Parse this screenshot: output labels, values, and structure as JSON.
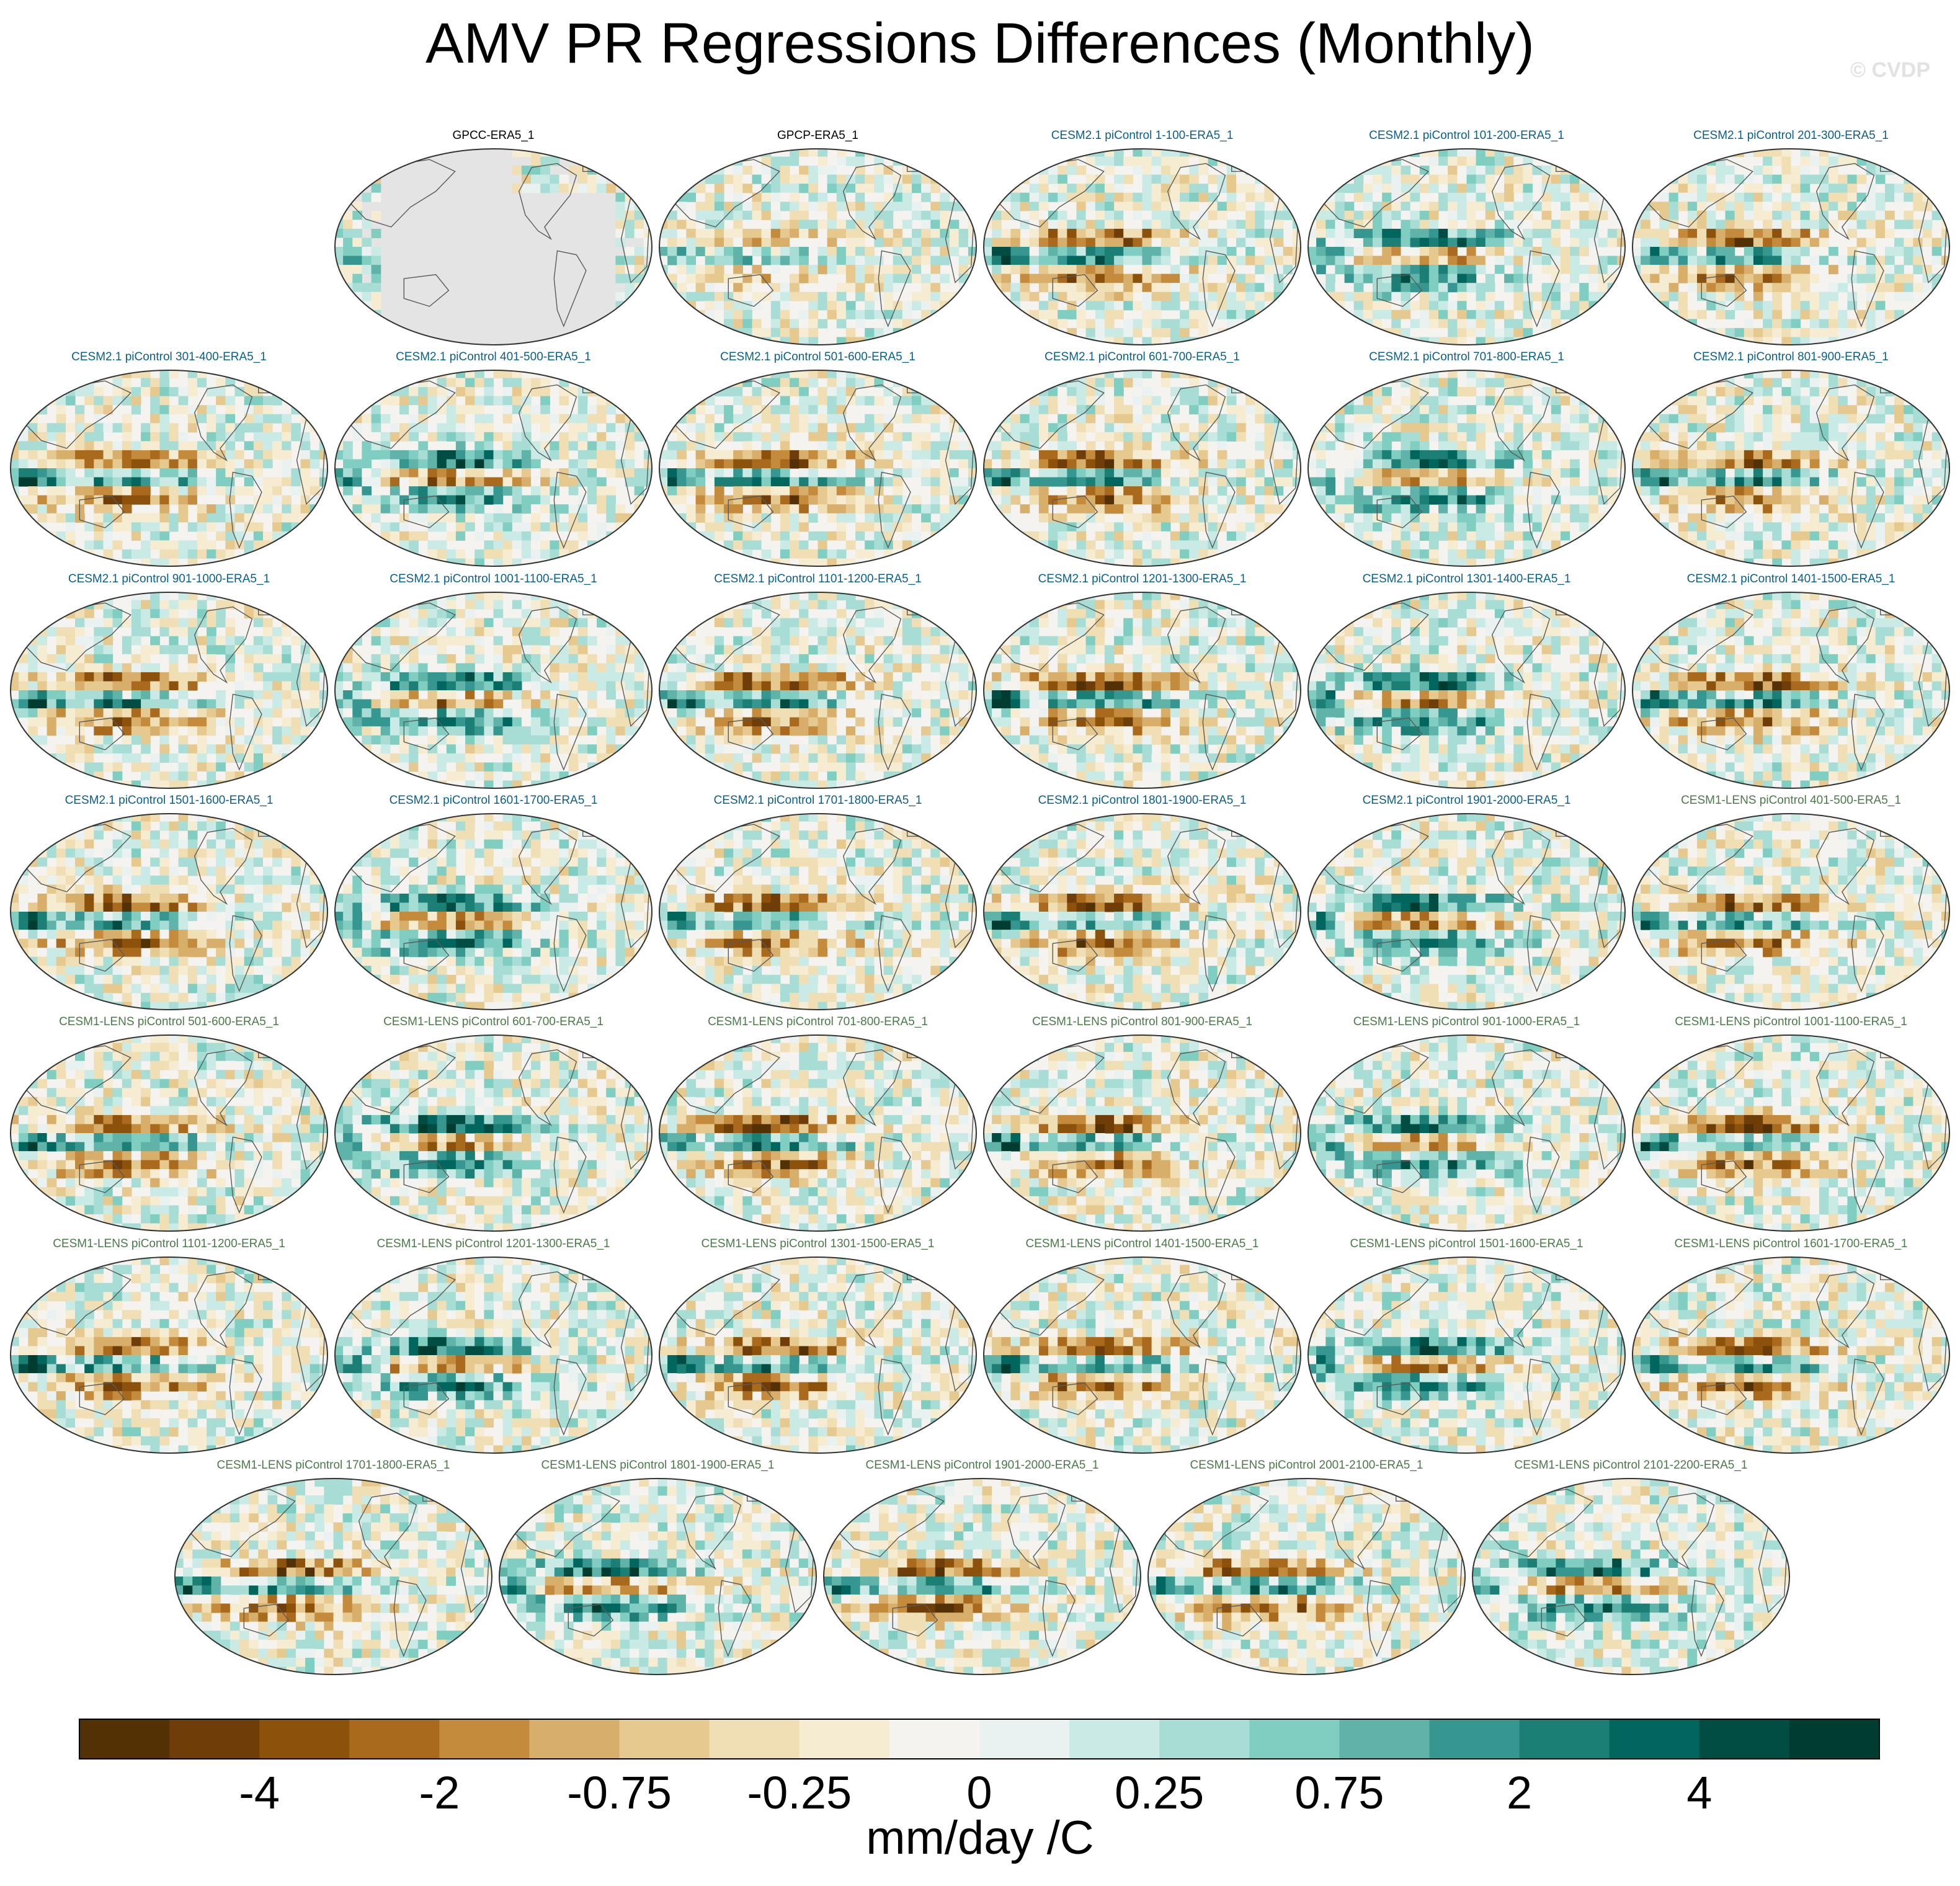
{
  "header": {
    "title": "AMV PR Regressions Differences (Monthly)",
    "watermark": "© CVDP"
  },
  "chart_data": {
    "type": "heatmap",
    "subtype": "global-map-panels",
    "title": "AMV PR Regressions Differences (Monthly)",
    "colorbar": {
      "label": "mm/day /C",
      "levels": [
        -5,
        -4,
        -3,
        -2,
        -1,
        -0.75,
        -0.5,
        -0.25,
        0,
        0.25,
        0.5,
        0.75,
        1,
        2,
        3,
        4,
        5
      ],
      "tick_labels": [
        "-4",
        "-2",
        "-0.75",
        "-0.25",
        "0",
        "0.25",
        "0.75",
        "2",
        "4"
      ],
      "tick_level_index": [
        1,
        3,
        5,
        7,
        8,
        9,
        11,
        13,
        15
      ],
      "colors": [
        "#543005",
        "#6f3d07",
        "#8c510a",
        "#a96a1e",
        "#c48b3d",
        "#d8ae6b",
        "#e6c98f",
        "#f0dfb4",
        "#f5ecd2",
        "#f5f3ef",
        "#eaf2f1",
        "#c9eae5",
        "#a8ddd5",
        "#80cdc1",
        "#5fb3a8",
        "#35978f",
        "#1b7f76",
        "#01665e",
        "#014d43",
        "#003c30"
      ]
    },
    "panels": [
      {
        "title": "GPCC-ERA5_1",
        "group": "obs"
      },
      {
        "title": "GPCP-ERA5_1",
        "group": "obs"
      },
      {
        "title": "CESM2.1 piControl 1-100-ERA5_1",
        "group": "cesm2"
      },
      {
        "title": "CESM2.1 piControl 101-200-ERA5_1",
        "group": "cesm2"
      },
      {
        "title": "CESM2.1 piControl 201-300-ERA5_1",
        "group": "cesm2"
      },
      {
        "title": "CESM2.1 piControl 301-400-ERA5_1",
        "group": "cesm2"
      },
      {
        "title": "CESM2.1 piControl 401-500-ERA5_1",
        "group": "cesm2"
      },
      {
        "title": "CESM2.1 piControl 501-600-ERA5_1",
        "group": "cesm2"
      },
      {
        "title": "CESM2.1 piControl 601-700-ERA5_1",
        "group": "cesm2"
      },
      {
        "title": "CESM2.1 piControl 701-800-ERA5_1",
        "group": "cesm2"
      },
      {
        "title": "CESM2.1 piControl 801-900-ERA5_1",
        "group": "cesm2"
      },
      {
        "title": "CESM2.1 piControl 901-1000-ERA5_1",
        "group": "cesm2"
      },
      {
        "title": "CESM2.1 piControl 1001-1100-ERA5_1",
        "group": "cesm2"
      },
      {
        "title": "CESM2.1 piControl 1101-1200-ERA5_1",
        "group": "cesm2"
      },
      {
        "title": "CESM2.1 piControl 1201-1300-ERA5_1",
        "group": "cesm2"
      },
      {
        "title": "CESM2.1 piControl 1301-1400-ERA5_1",
        "group": "cesm2"
      },
      {
        "title": "CESM2.1 piControl 1401-1500-ERA5_1",
        "group": "cesm2"
      },
      {
        "title": "CESM2.1 piControl 1501-1600-ERA5_1",
        "group": "cesm2"
      },
      {
        "title": "CESM2.1 piControl 1601-1700-ERA5_1",
        "group": "cesm2"
      },
      {
        "title": "CESM2.1 piControl 1701-1800-ERA5_1",
        "group": "cesm2"
      },
      {
        "title": "CESM2.1 piControl 1801-1900-ERA5_1",
        "group": "cesm2"
      },
      {
        "title": "CESM2.1 piControl 1901-2000-ERA5_1",
        "group": "cesm2"
      },
      {
        "title": "CESM1-LENS piControl 401-500-ERA5_1",
        "group": "cesm1"
      },
      {
        "title": "CESM1-LENS piControl 501-600-ERA5_1",
        "group": "cesm1"
      },
      {
        "title": "CESM1-LENS piControl 601-700-ERA5_1",
        "group": "cesm1"
      },
      {
        "title": "CESM1-LENS piControl 701-800-ERA5_1",
        "group": "cesm1"
      },
      {
        "title": "CESM1-LENS piControl 801-900-ERA5_1",
        "group": "cesm1"
      },
      {
        "title": "CESM1-LENS piControl 901-1000-ERA5_1",
        "group": "cesm1"
      },
      {
        "title": "CESM1-LENS piControl 1001-1100-ERA5_1",
        "group": "cesm1"
      },
      {
        "title": "CESM1-LENS piControl 1101-1200-ERA5_1",
        "group": "cesm1"
      },
      {
        "title": "CESM1-LENS piControl 1201-1300-ERA5_1",
        "group": "cesm1"
      },
      {
        "title": "CESM1-LENS piControl 1301-1500-ERA5_1",
        "group": "cesm1"
      },
      {
        "title": "CESM1-LENS piControl 1401-1500-ERA5_1",
        "group": "cesm1"
      },
      {
        "title": "CESM1-LENS piControl 1501-1600-ERA5_1",
        "group": "cesm1"
      },
      {
        "title": "CESM1-LENS piControl 1601-1700-ERA5_1",
        "group": "cesm1"
      },
      {
        "title": "CESM1-LENS piControl 1701-1800-ERA5_1",
        "group": "cesm1"
      },
      {
        "title": "CESM1-LENS piControl 1801-1900-ERA5_1",
        "group": "cesm1"
      },
      {
        "title": "CESM1-LENS piControl 1901-2000-ERA5_1",
        "group": "cesm1"
      },
      {
        "title": "CESM1-LENS piControl 2001-2100-ERA5_1",
        "group": "cesm1"
      },
      {
        "title": "CESM1-LENS piControl 2101-2200-ERA5_1",
        "group": "cesm1"
      }
    ],
    "group_title_colors": {
      "obs": "#000000",
      "cesm2": "#0a5f8a",
      "cesm1": "#4a7a4a"
    }
  }
}
